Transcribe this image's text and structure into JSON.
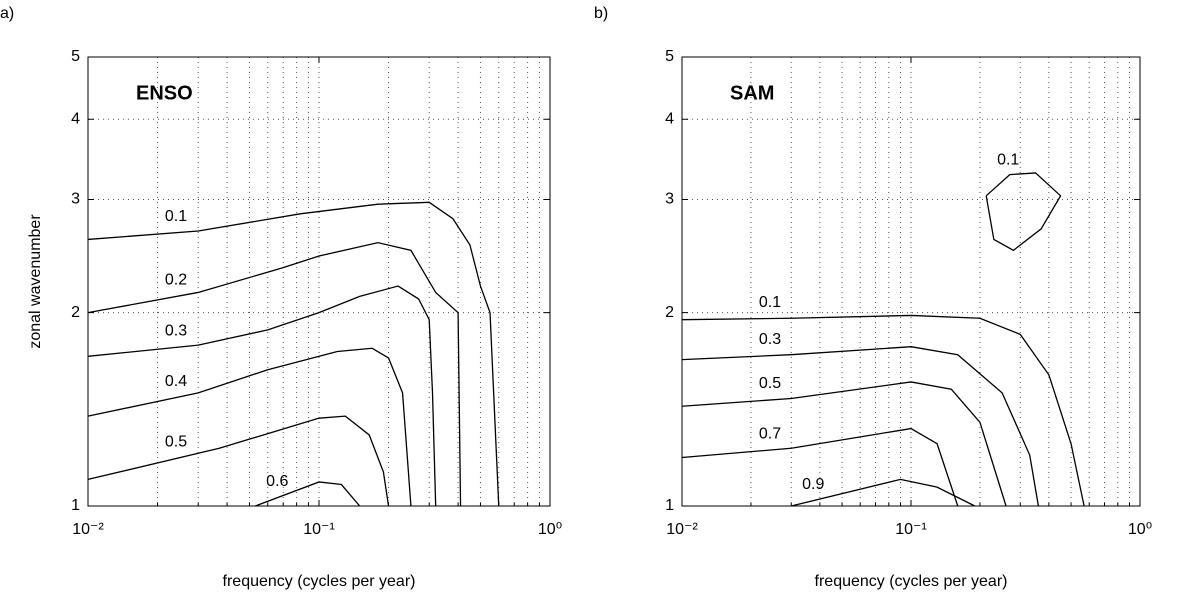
{
  "chart_data": [
    {
      "type": "contour",
      "panel_label": "a)",
      "title": "ENSO",
      "xlabel": "frequency (cycles per year)",
      "ylabel": "zonal wavenumber",
      "xscale": "log",
      "yscale": "log",
      "xlim": [
        0.01,
        1
      ],
      "ylim": [
        1,
        5
      ],
      "xticks": [
        {
          "value": 0.01,
          "label": "10⁻²"
        },
        {
          "value": 0.1,
          "label": "10⁻¹"
        },
        {
          "value": 1,
          "label": "10⁰"
        }
      ],
      "xminorticks": [
        0.02,
        0.03,
        0.04,
        0.05,
        0.06,
        0.07,
        0.08,
        0.09,
        0.2,
        0.3,
        0.4,
        0.5,
        0.6,
        0.7,
        0.8,
        0.9
      ],
      "yticks": [
        1,
        2,
        3,
        4,
        5
      ],
      "grid": true,
      "series": [
        {
          "name": "0.1",
          "color": "#000000",
          "x": [
            0.01,
            0.03,
            0.083,
            0.18,
            0.3,
            0.38,
            0.45,
            0.5,
            0.55,
            0.6
          ],
          "values": [
            2.6,
            2.68,
            2.85,
            2.95,
            2.97,
            2.8,
            2.55,
            2.2,
            2.0,
            1
          ]
        },
        {
          "name": "0.2",
          "color": "#000000",
          "x": [
            0.01,
            0.03,
            0.07,
            0.1,
            0.18,
            0.25,
            0.32,
            0.4,
            0.41
          ],
          "values": [
            2.0,
            2.15,
            2.35,
            2.45,
            2.57,
            2.5,
            2.15,
            2.0,
            1
          ]
        },
        {
          "name": "0.3",
          "color": "#000000",
          "x": [
            0.01,
            0.03,
            0.06,
            0.1,
            0.15,
            0.22,
            0.27,
            0.3,
            0.31,
            0.32
          ],
          "values": [
            1.71,
            1.78,
            1.88,
            2.0,
            2.12,
            2.2,
            2.1,
            1.95,
            1.5,
            1
          ]
        },
        {
          "name": "0.4",
          "color": "#000000",
          "x": [
            0.01,
            0.03,
            0.06,
            0.12,
            0.17,
            0.2,
            0.23,
            0.25
          ],
          "values": [
            1.38,
            1.5,
            1.63,
            1.74,
            1.76,
            1.7,
            1.5,
            1
          ]
        },
        {
          "name": "0.5",
          "color": "#000000",
          "x": [
            0.01,
            0.037,
            0.1,
            0.13,
            0.165,
            0.19,
            0.2
          ],
          "values": [
            1.1,
            1.23,
            1.37,
            1.38,
            1.29,
            1.13,
            1
          ]
        },
        {
          "name": "0.6",
          "color": "#000000",
          "x": [
            0.053,
            0.1,
            0.125,
            0.15
          ],
          "values": [
            1,
            1.09,
            1.08,
            1
          ]
        }
      ]
    },
    {
      "type": "contour",
      "panel_label": "b)",
      "title": "SAM",
      "xlabel": "frequency (cycles per year)",
      "xscale": "log",
      "yscale": "log",
      "xlim": [
        0.01,
        1
      ],
      "ylim": [
        1,
        5
      ],
      "xticks": [
        {
          "value": 0.01,
          "label": "10⁻²"
        },
        {
          "value": 0.1,
          "label": "10⁻¹"
        },
        {
          "value": 1,
          "label": "10⁰"
        }
      ],
      "xminorticks": [
        0.02,
        0.03,
        0.04,
        0.05,
        0.06,
        0.07,
        0.08,
        0.09,
        0.2,
        0.3,
        0.4,
        0.5,
        0.6,
        0.7,
        0.8,
        0.9
      ],
      "yticks": [
        1,
        2,
        3,
        4,
        5
      ],
      "grid": true,
      "series": [
        {
          "name": "0.1",
          "color": "#000000",
          "x": [
            0.213,
            0.27,
            0.35,
            0.45,
            0.37,
            0.28,
            0.23,
            0.213
          ],
          "values": [
            3.04,
            3.28,
            3.3,
            3.04,
            2.7,
            2.5,
            2.6,
            3.04
          ]
        },
        {
          "name": "0.1",
          "color": "#000000",
          "x": [
            0.01,
            0.03,
            0.1,
            0.2,
            0.3,
            0.4,
            0.5,
            0.57
          ],
          "values": [
            1.95,
            1.96,
            1.98,
            1.96,
            1.85,
            1.6,
            1.25,
            1
          ]
        },
        {
          "name": "0.3",
          "color": "#000000",
          "x": [
            0.01,
            0.03,
            0.1,
            0.16,
            0.25,
            0.33,
            0.36
          ],
          "values": [
            1.69,
            1.72,
            1.77,
            1.72,
            1.5,
            1.2,
            1
          ]
        },
        {
          "name": "0.5",
          "color": "#000000",
          "x": [
            0.01,
            0.03,
            0.1,
            0.15,
            0.2,
            0.26
          ],
          "values": [
            1.43,
            1.47,
            1.56,
            1.52,
            1.35,
            1
          ]
        },
        {
          "name": "0.7",
          "color": "#000000",
          "x": [
            0.01,
            0.03,
            0.1,
            0.13,
            0.16
          ],
          "values": [
            1.19,
            1.23,
            1.32,
            1.25,
            1
          ]
        },
        {
          "name": "0.9",
          "color": "#000000",
          "x": [
            0.03,
            0.09,
            0.13,
            0.19
          ],
          "values": [
            1,
            1.1,
            1.07,
            1
          ]
        }
      ]
    }
  ]
}
